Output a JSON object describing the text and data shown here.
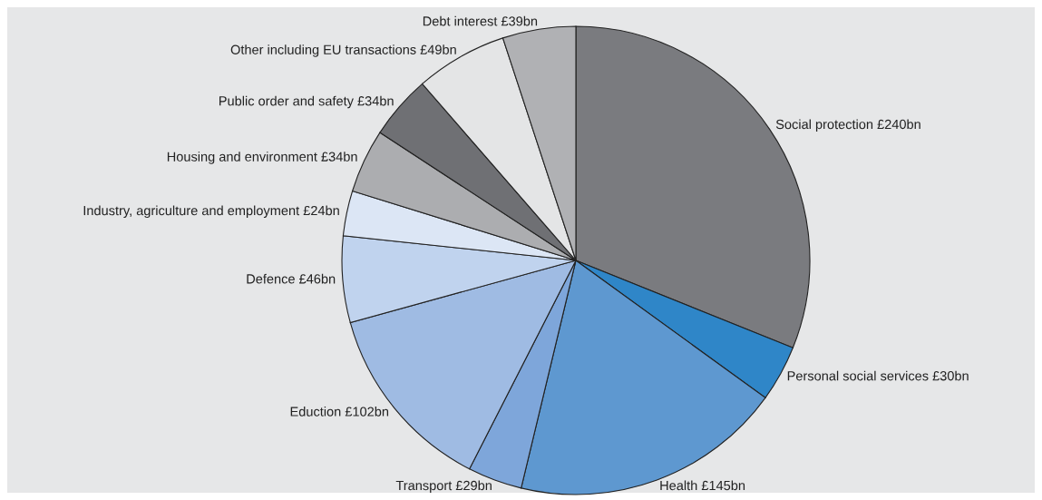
{
  "chart_data": {
    "type": "pie",
    "categories": [
      "Social protection",
      "Personal social services",
      "Health",
      "Transport",
      "Eduction",
      "Defence",
      "Industry, agriculture and employment",
      "Housing and environment",
      "Public order and safety",
      "Other including EU transactions",
      "Debt interest"
    ],
    "values": [
      240,
      30,
      145,
      29,
      102,
      46,
      24,
      34,
      34,
      49,
      39
    ],
    "value_labels": [
      "£240bn",
      "£30bn",
      "£145bn",
      "£29bn",
      "£102bn",
      "£46bn",
      "£24bn",
      "£34bn",
      "£34bn",
      "£49bn",
      "£39bn"
    ],
    "colors": [
      "#7a7b7f",
      "#2f86c8",
      "#5e98d0",
      "#7ea6da",
      "#9fbbe3",
      "#c0d3ee",
      "#dce6f5",
      "#acadb0",
      "#6f7074",
      "#e4e5e6",
      "#b0b1b4"
    ]
  }
}
